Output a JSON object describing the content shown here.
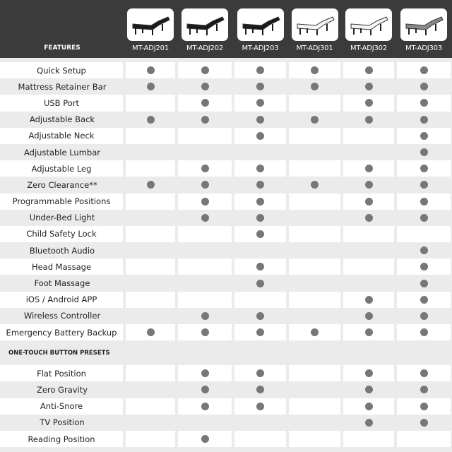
{
  "header": {
    "features_label": "FEATURES",
    "models": [
      {
        "name": "MT-ADJ201",
        "frame": "black"
      },
      {
        "name": "MT-ADJ202",
        "frame": "black"
      },
      {
        "name": "MT-ADJ203",
        "frame": "black"
      },
      {
        "name": "MT-ADJ301",
        "frame": "white"
      },
      {
        "name": "MT-ADJ302",
        "frame": "white"
      },
      {
        "name": "MT-ADJ303",
        "frame": "gray"
      }
    ]
  },
  "features": [
    {
      "label": "Quick Setup",
      "has": [
        1,
        1,
        1,
        1,
        1,
        1
      ]
    },
    {
      "label": "Mattress Retainer Bar",
      "has": [
        1,
        1,
        1,
        1,
        1,
        1
      ]
    },
    {
      "label": "USB Port",
      "has": [
        0,
        1,
        1,
        0,
        1,
        1
      ]
    },
    {
      "label": "Adjustable Back",
      "has": [
        1,
        1,
        1,
        1,
        1,
        1
      ]
    },
    {
      "label": "Adjustable Neck",
      "has": [
        0,
        0,
        1,
        0,
        0,
        1
      ]
    },
    {
      "label": "Adjustable Lumbar",
      "has": [
        0,
        0,
        0,
        0,
        0,
        1
      ]
    },
    {
      "label": "Adjustable Leg",
      "has": [
        0,
        1,
        1,
        0,
        1,
        1
      ]
    },
    {
      "label": "Zero Clearance**",
      "has": [
        1,
        1,
        1,
        1,
        1,
        1
      ]
    },
    {
      "label": "Programmable Positions",
      "has": [
        0,
        1,
        1,
        0,
        1,
        1
      ]
    },
    {
      "label": "Under-Bed Light",
      "has": [
        0,
        1,
        1,
        0,
        1,
        1
      ]
    },
    {
      "label": "Child Safety Lock",
      "has": [
        0,
        0,
        1,
        0,
        0,
        0
      ]
    },
    {
      "label": "Bluetooth Audio",
      "has": [
        0,
        0,
        0,
        0,
        0,
        1
      ]
    },
    {
      "label": "Head Massage",
      "has": [
        0,
        0,
        1,
        0,
        0,
        1
      ]
    },
    {
      "label": "Foot Massage",
      "has": [
        0,
        0,
        1,
        0,
        0,
        1
      ]
    },
    {
      "label": "iOS / Android APP",
      "has": [
        0,
        0,
        0,
        0,
        1,
        1
      ]
    },
    {
      "label": "Wireless Controller",
      "has": [
        0,
        1,
        1,
        0,
        1,
        1
      ]
    },
    {
      "label": "Emergency Battery Backup",
      "has": [
        1,
        1,
        1,
        1,
        1,
        1
      ]
    }
  ],
  "presets_section": {
    "title": "ONE-TOUCH BUTTON PRESETS",
    "items": [
      {
        "label": "Flat Position",
        "has": [
          0,
          1,
          1,
          0,
          1,
          1
        ]
      },
      {
        "label": "Zero Gravity",
        "has": [
          0,
          1,
          1,
          0,
          1,
          1
        ]
      },
      {
        "label": "Anti-Snore",
        "has": [
          0,
          1,
          1,
          0,
          1,
          1
        ]
      },
      {
        "label": "TV Position",
        "has": [
          0,
          0,
          0,
          0,
          1,
          1
        ]
      },
      {
        "label": "Reading Position",
        "has": [
          0,
          1,
          0,
          0,
          0,
          0
        ]
      }
    ]
  },
  "colors": {
    "header_bg": "#3b3b3b",
    "dot": "#777777",
    "stripe": "#ebebeb"
  }
}
